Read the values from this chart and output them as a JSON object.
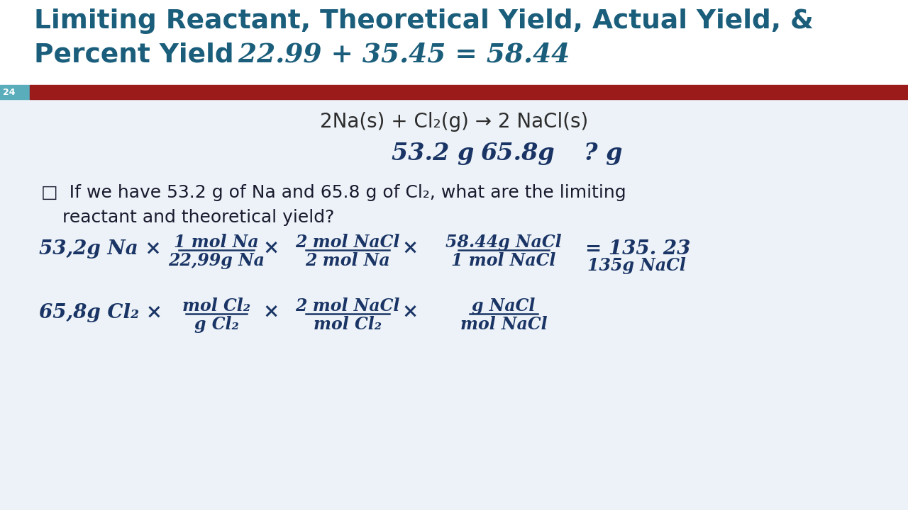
{
  "title_line1": "Limiting Reactant, Theoretical Yield, Actual Yield, &",
  "title_line2": "Percent Yield  22.99 + 35.45 = 58.44",
  "slide_number": "24",
  "title_color": "#1b5e7b",
  "grid_color": "#c5d5e5",
  "red_bar_color": "#9b1a1a",
  "teal_bar_color": "#5aadbb",
  "body_bg": "#edf2f8",
  "header_bg": "#ffffff",
  "handwriting_color": "#1a3565",
  "typed_color": "#1a1a2e"
}
